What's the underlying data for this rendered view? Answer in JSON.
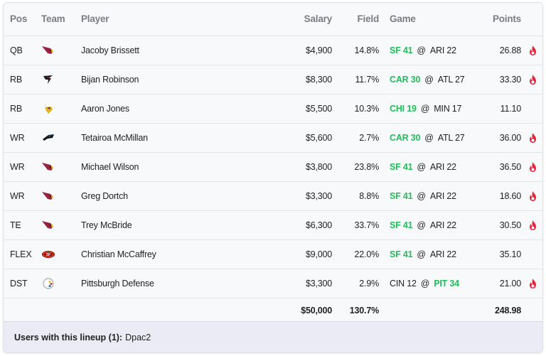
{
  "table": {
    "headers": {
      "pos": "Pos",
      "team": "Team",
      "player": "Player",
      "salary": "Salary",
      "field": "Field",
      "game": "Game",
      "points": "Points"
    },
    "rows": [
      {
        "pos": "QB",
        "team": "ARI",
        "team_icon": "cardinals-logo-icon",
        "player": "Jacoby Brissett",
        "salary": "$4,900",
        "field": "14.8%",
        "away": "SF 41",
        "home": "ARI 22",
        "winner": "away",
        "points": "26.88",
        "hot": true
      },
      {
        "pos": "RB",
        "team": "ATL",
        "team_icon": "falcons-logo-icon",
        "player": "Bijan Robinson",
        "salary": "$8,300",
        "field": "11.7%",
        "away": "CAR 30",
        "home": "ATL 27",
        "winner": "away",
        "points": "33.30",
        "hot": true
      },
      {
        "pos": "RB",
        "team": "MIN",
        "team_icon": "vikings-logo-icon",
        "player": "Aaron Jones",
        "salary": "$5,500",
        "field": "10.3%",
        "away": "CHI 19",
        "home": "MIN 17",
        "winner": "away",
        "points": "11.10",
        "hot": false
      },
      {
        "pos": "WR",
        "team": "CAR",
        "team_icon": "panthers-logo-icon",
        "player": "Tetairoa McMillan",
        "salary": "$5,600",
        "field": "2.7%",
        "away": "CAR 30",
        "home": "ATL 27",
        "winner": "away",
        "points": "36.00",
        "hot": true
      },
      {
        "pos": "WR",
        "team": "ARI",
        "team_icon": "cardinals-logo-icon",
        "player": "Michael Wilson",
        "salary": "$3,800",
        "field": "23.8%",
        "away": "SF 41",
        "home": "ARI 22",
        "winner": "away",
        "points": "36.50",
        "hot": true
      },
      {
        "pos": "WR",
        "team": "ARI",
        "team_icon": "cardinals-logo-icon",
        "player": "Greg Dortch",
        "salary": "$3,300",
        "field": "8.8%",
        "away": "SF 41",
        "home": "ARI 22",
        "winner": "away",
        "points": "18.60",
        "hot": true
      },
      {
        "pos": "TE",
        "team": "ARI",
        "team_icon": "cardinals-logo-icon",
        "player": "Trey McBride",
        "salary": "$6,300",
        "field": "33.7%",
        "away": "SF 41",
        "home": "ARI 22",
        "winner": "away",
        "points": "30.50",
        "hot": true
      },
      {
        "pos": "FLEX",
        "team": "SF",
        "team_icon": "49ers-logo-icon",
        "player": "Christian McCaffrey",
        "salary": "$9,000",
        "field": "22.0%",
        "away": "SF 41",
        "home": "ARI 22",
        "winner": "away",
        "points": "35.10",
        "hot": false
      },
      {
        "pos": "DST",
        "team": "PIT",
        "team_icon": "steelers-logo-icon",
        "player": "Pittsburgh Defense",
        "salary": "$3,300",
        "field": "2.9%",
        "away": "CIN 12",
        "home": "PIT 34",
        "winner": "home",
        "points": "21.00",
        "hot": true
      }
    ],
    "at_symbol": "@",
    "totals": {
      "salary": "$50,000",
      "field": "130.7%",
      "points": "248.98"
    }
  },
  "footer": {
    "label": "Users with this lineup (1):",
    "users": "Dpac2"
  },
  "colors": {
    "winner_green": "#1fbf5a",
    "fire_red": "#e8243a",
    "footer_bg": "#ebebf5"
  }
}
